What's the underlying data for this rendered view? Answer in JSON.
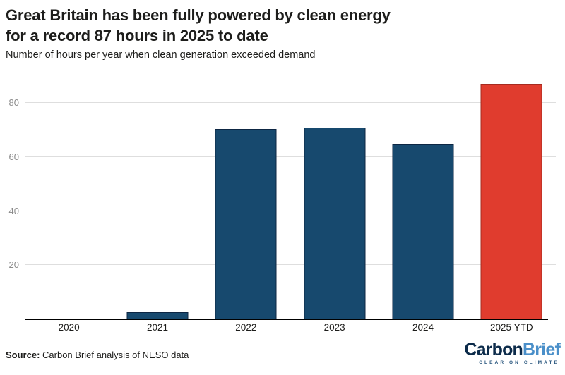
{
  "header": {
    "title_line1": "Great Britain has been fully powered by clean energy",
    "title_line2": "for a record 87 hours in 2025 to date",
    "subtitle": "Number of hours per year when clean generation exceeded demand"
  },
  "chart_data": {
    "type": "bar",
    "title": "Great Britain has been fully powered by clean energy for a record 87 hours in 2025 to date",
    "subtitle": "Number of hours per year when clean generation exceeded demand",
    "categories": [
      "2020",
      "2021",
      "2022",
      "2023",
      "2024",
      "2025 YTD"
    ],
    "values": [
      0,
      2.5,
      70.5,
      71,
      65,
      87
    ],
    "bar_fill_colors": [
      "#17496e",
      "#17496e",
      "#17496e",
      "#17496e",
      "#17496e",
      "#e03c2e"
    ],
    "bar_border_colors": [
      "#0d2643",
      "#0d2643",
      "#0d2643",
      "#0d2643",
      "#0d2643",
      "#a62b20"
    ],
    "highlight_category": "2025 YTD",
    "xlabel": "",
    "ylabel": "",
    "yticks": [
      20,
      40,
      60,
      80
    ],
    "ylim": [
      0,
      92
    ],
    "grid": true,
    "gridline_color": "#dedede",
    "axis_line_color": "#000000",
    "tick_label_color": "#8a8a8a"
  },
  "footer": {
    "source_label": "Source:",
    "source_text": " Carbon Brief analysis of NESO data"
  },
  "logo": {
    "carbon": "Carbon",
    "brief": "Brief",
    "tagline": "CLEAR ON CLIMATE"
  }
}
